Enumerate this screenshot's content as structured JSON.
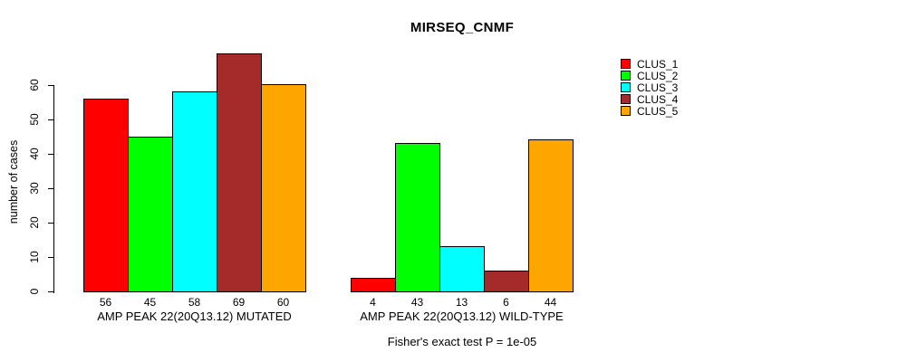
{
  "title": "MIRSEQ_CNMF",
  "chart_data": {
    "type": "bar",
    "title": "MIRSEQ_CNMF",
    "ylabel": "number of cases",
    "xlabel": "",
    "yticks": [
      0,
      10,
      20,
      30,
      40,
      50,
      60
    ],
    "ylim": [
      0,
      69
    ],
    "grid": false,
    "legend_position": "top-right",
    "categories": [
      "CLUS_1",
      "CLUS_2",
      "CLUS_3",
      "CLUS_4",
      "CLUS_5"
    ],
    "groups": [
      {
        "label": "AMP PEAK 22(20Q13.12) MUTATED",
        "values": [
          56,
          45,
          58,
          69,
          60
        ]
      },
      {
        "label": "AMP PEAK 22(20Q13.12) WILD-TYPE",
        "values": [
          4,
          43,
          13,
          6,
          44
        ]
      }
    ],
    "legend": [
      {
        "label": "CLUS_1",
        "color": "#FF0000"
      },
      {
        "label": "CLUS_2",
        "color": "#00FF00"
      },
      {
        "label": "CLUS_3",
        "color": "#00FFFF"
      },
      {
        "label": "CLUS_4",
        "color": "#A52A2A"
      },
      {
        "label": "CLUS_5",
        "color": "#FFA500"
      }
    ],
    "footnote": "Fisher's exact test P = 1e-05"
  }
}
